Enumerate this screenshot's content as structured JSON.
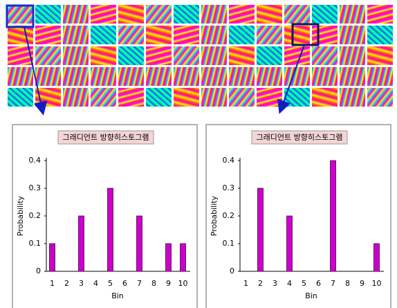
{
  "chart_data": [
    {
      "type": "bar",
      "title": "그래디언트 방향히스토그램",
      "x_label": "Bin",
      "y_label": "Probability",
      "categories": [
        "1",
        "2",
        "3",
        "4",
        "5",
        "6",
        "7",
        "8",
        "9",
        "10"
      ],
      "values": [
        0.1,
        0,
        0.2,
        0,
        0.3,
        0,
        0.2,
        0,
        0.1,
        0.1
      ],
      "color": "#cc00cc",
      "ylim": [
        0,
        0.4
      ],
      "yticks": [
        0,
        0.1,
        0.2,
        0.3,
        0.4
      ]
    },
    {
      "type": "bar",
      "title": "그래디언트 방향히스토그램",
      "x_label": "Bin",
      "y_label": "Probability",
      "categories": [
        "1",
        "2",
        "3",
        "4",
        "5",
        "6",
        "7",
        "8",
        "9",
        "10"
      ],
      "values": [
        0,
        0.3,
        0,
        0.2,
        0,
        0,
        0.4,
        0,
        0,
        0.1
      ],
      "color": "#cc00cc",
      "ylim": [
        0,
        0.4
      ],
      "yticks": [
        0,
        0.1,
        0.2,
        0.3,
        0.4
      ]
    }
  ]
}
